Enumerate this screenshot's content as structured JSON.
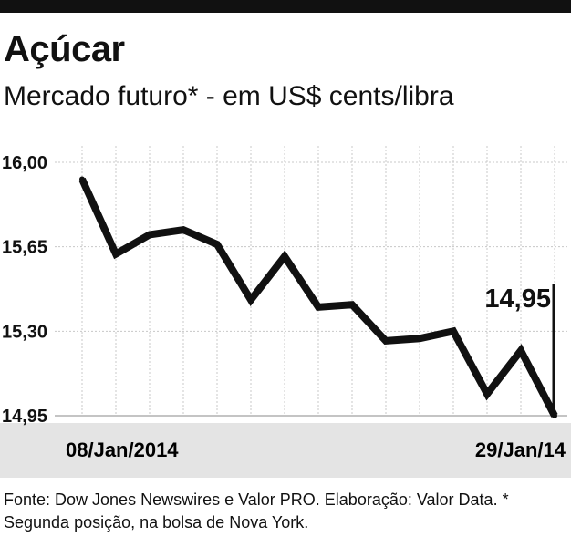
{
  "header": {
    "title": "Açúcar",
    "subtitle": "Mercado futuro* - em US$ cents/libra"
  },
  "footer": {
    "source": "Fonte: Dow Jones Newswires e Valor PRO. Elaboração: Valor Data.  * Segunda posição, na bolsa de Nova York."
  },
  "colors": {
    "line": "#111111",
    "grid": "#c8c8c8",
    "date_band": "#e4e4e4"
  },
  "chart_data": {
    "type": "line",
    "title": "Açúcar",
    "subtitle": "Mercado futuro* - em US$ cents/libra",
    "x_labels": [
      "08/Jan/2014",
      "29/Jan/14"
    ],
    "y_ticks": [
      "16,00",
      "15,65",
      "15,30",
      "14,95"
    ],
    "ylim": [
      14.95,
      16.0
    ],
    "grid": true,
    "callout": "14,95",
    "series": [
      {
        "values": [
          15.93,
          15.62,
          15.7,
          15.72,
          15.66,
          15.43,
          15.61,
          15.4,
          15.41,
          15.26,
          15.27,
          15.3,
          15.04,
          15.22,
          14.95
        ]
      }
    ]
  }
}
